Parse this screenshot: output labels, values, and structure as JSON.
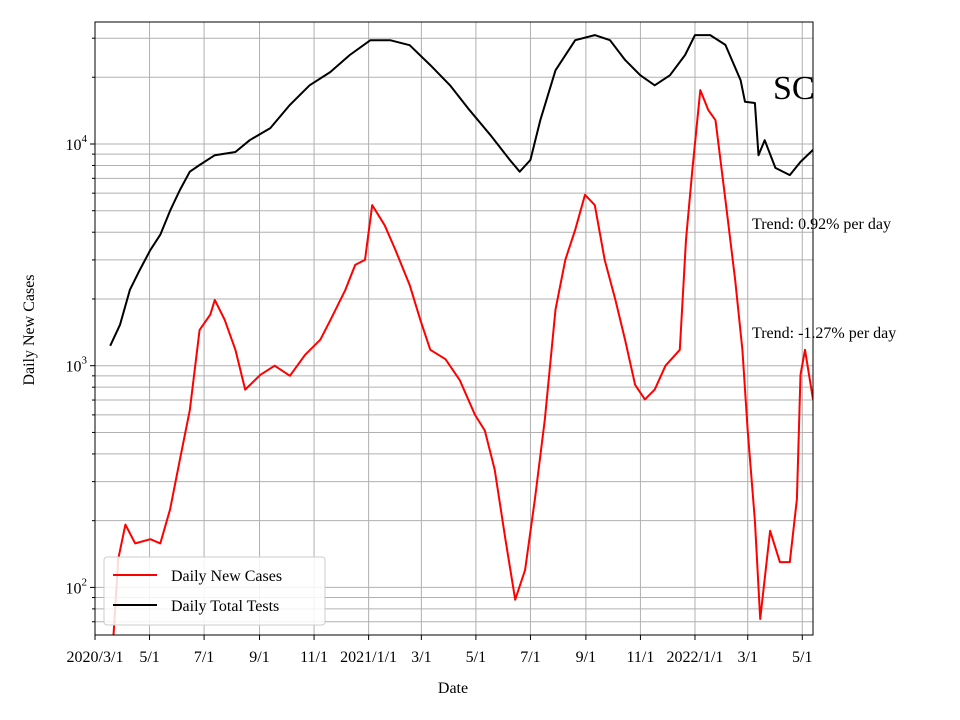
{
  "chart_data": {
    "type": "line",
    "title": "SC",
    "xlabel": "Date",
    "ylabel": "Daily New Cases",
    "yscale": "log",
    "ylim": [
      61,
      35500
    ],
    "x_origin": "2020-03-01",
    "x_unit": "days since 2020-03-01",
    "xlim": [
      0,
      803
    ],
    "grid": true,
    "legend_position": "lower-left",
    "x_ticks": [
      {
        "day": 0,
        "label": "2020/3/1"
      },
      {
        "day": 61,
        "label": "5/1"
      },
      {
        "day": 122,
        "label": "7/1"
      },
      {
        "day": 184,
        "label": "9/1"
      },
      {
        "day": 245,
        "label": "11/1"
      },
      {
        "day": 306,
        "label": "2021/1/1"
      },
      {
        "day": 365,
        "label": "3/1"
      },
      {
        "day": 426,
        "label": "5/1"
      },
      {
        "day": 487,
        "label": "7/1"
      },
      {
        "day": 549,
        "label": "9/1"
      },
      {
        "day": 610,
        "label": "11/1"
      },
      {
        "day": 671,
        "label": "2022/1/1"
      },
      {
        "day": 730,
        "label": "3/1"
      },
      {
        "day": 791,
        "label": "5/1"
      }
    ],
    "y_ticks": [
      {
        "value": 100,
        "base": "10",
        "exp": "2"
      },
      {
        "value": 1000,
        "base": "10",
        "exp": "3"
      },
      {
        "value": 10000,
        "base": "10",
        "exp": "4"
      }
    ],
    "series": [
      {
        "name": "Daily New Cases",
        "color": "#ff0000",
        "x": [
          20,
          26,
          34,
          45,
          62,
          73,
          84,
          95,
          106,
          117,
          129,
          134,
          145,
          157,
          168,
          185,
          201,
          218,
          235,
          252,
          263,
          280,
          291,
          302,
          310,
          324,
          336,
          352,
          364,
          375,
          392,
          408,
          425,
          436,
          447,
          459,
          470,
          481,
          492,
          503,
          515,
          526,
          537,
          548,
          559,
          570,
          582,
          593,
          604,
          615,
          626,
          638,
          654,
          661,
          668,
          677,
          686,
          694,
          705,
          716,
          724,
          730,
          738,
          744,
          755,
          766,
          777,
          785,
          789,
          794,
          803
        ],
        "values": [
          55,
          134,
          192,
          158,
          165,
          158,
          225,
          377,
          630,
          1450,
          1700,
          1980,
          1610,
          1180,
          780,
          910,
          1000,
          900,
          1120,
          1310,
          1600,
          2200,
          2850,
          3000,
          5300,
          4300,
          3330,
          2310,
          1600,
          1180,
          1070,
          860,
          600,
          510,
          340,
          165,
          88,
          120,
          250,
          570,
          1790,
          3000,
          4100,
          5900,
          5300,
          3000,
          1980,
          1300,
          820,
          705,
          780,
          1000,
          1180,
          3700,
          7600,
          17500,
          14200,
          12800,
          5600,
          2430,
          1180,
          510,
          200,
          72,
          180,
          130,
          130,
          250,
          910,
          1180,
          705
        ]
      },
      {
        "name": "Daily Total Tests",
        "color": "#000000",
        "x": [
          17,
          28,
          39,
          50,
          62,
          73,
          84,
          95,
          106,
          117,
          134,
          157,
          173,
          196,
          218,
          240,
          263,
          285,
          308,
          330,
          352,
          375,
          397,
          419,
          442,
          464,
          475,
          487,
          498,
          515,
          537,
          559,
          576,
          593,
          610,
          626,
          643,
          660,
          671,
          688,
          705,
          722,
          727,
          738,
          742,
          749,
          761,
          777,
          789,
          803
        ],
        "values": [
          1230,
          1530,
          2200,
          2700,
          3330,
          3900,
          5000,
          6200,
          7500,
          8040,
          8900,
          9200,
          10400,
          11800,
          15000,
          18400,
          21100,
          25200,
          29400,
          29400,
          27900,
          22700,
          18400,
          14200,
          11000,
          8470,
          7500,
          8470,
          12800,
          21500,
          29400,
          31000,
          29400,
          23900,
          20400,
          18400,
          20400,
          25200,
          31000,
          31000,
          28000,
          19400,
          15500,
          15300,
          8900,
          10400,
          7800,
          7240,
          8300,
          9400
        ]
      }
    ],
    "annotations": [
      {
        "text": "Trend: 0.92% per day",
        "series": "Daily Total Tests"
      },
      {
        "text": "Trend: -1.27% per day",
        "series": "Daily New Cases"
      }
    ]
  }
}
